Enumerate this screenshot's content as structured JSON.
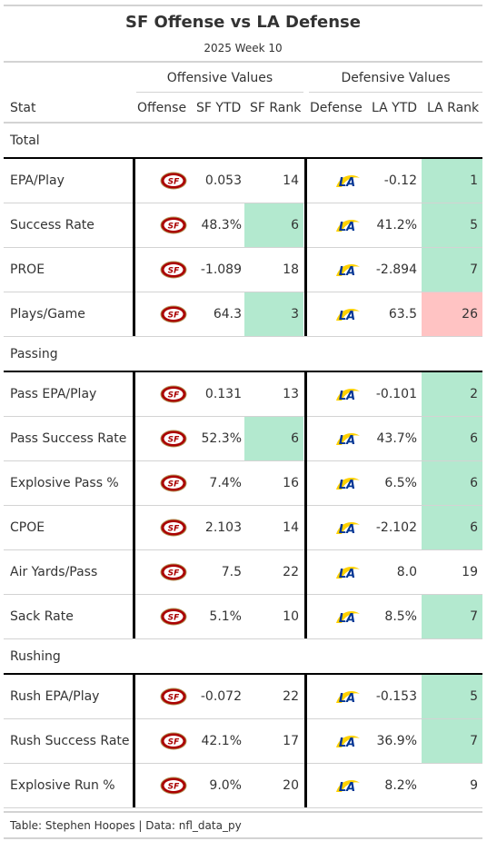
{
  "title": "SF Offense vs LA Defense",
  "subtitle": "2025 Week 10",
  "spanners": {
    "offensive": "Offensive Values",
    "defensive": "Defensive Values"
  },
  "columns": {
    "stat": "Stat",
    "offense": "Offense",
    "sf_ytd": "SF YTD",
    "sf_rank": "SF Rank",
    "defense": "Defense",
    "la_ytd": "LA YTD",
    "la_rank": "LA Rank"
  },
  "logos": {
    "offense": "49ers-logo-icon",
    "defense": "rams-logo-icon"
  },
  "colors": {
    "good": "#b3e9cf",
    "bad": "#ffc3c3",
    "niners_red": "#aa0000",
    "niners_gold": "#b3995d",
    "rams_blue": "#003594",
    "rams_gold": "#ffd100"
  },
  "groups": [
    {
      "name": "Total",
      "rows": [
        {
          "stat": "EPA/Play",
          "sf_ytd": "0.053",
          "sf_rank": "14",
          "sf_rank_highlight": "",
          "la_ytd": "-0.12",
          "la_rank": "1",
          "la_rank_highlight": "good"
        },
        {
          "stat": "Success Rate",
          "sf_ytd": "48.3%",
          "sf_rank": "6",
          "sf_rank_highlight": "good",
          "la_ytd": "41.2%",
          "la_rank": "5",
          "la_rank_highlight": "good"
        },
        {
          "stat": "PROE",
          "sf_ytd": "-1.089",
          "sf_rank": "18",
          "sf_rank_highlight": "",
          "la_ytd": "-2.894",
          "la_rank": "7",
          "la_rank_highlight": "good"
        },
        {
          "stat": "Plays/Game",
          "sf_ytd": "64.3",
          "sf_rank": "3",
          "sf_rank_highlight": "good",
          "la_ytd": "63.5",
          "la_rank": "26",
          "la_rank_highlight": "bad"
        }
      ]
    },
    {
      "name": "Passing",
      "rows": [
        {
          "stat": "Pass EPA/Play",
          "sf_ytd": "0.131",
          "sf_rank": "13",
          "sf_rank_highlight": "",
          "la_ytd": "-0.101",
          "la_rank": "2",
          "la_rank_highlight": "good"
        },
        {
          "stat": "Pass Success Rate",
          "sf_ytd": "52.3%",
          "sf_rank": "6",
          "sf_rank_highlight": "good",
          "la_ytd": "43.7%",
          "la_rank": "6",
          "la_rank_highlight": "good"
        },
        {
          "stat": "Explosive Pass %",
          "sf_ytd": "7.4%",
          "sf_rank": "16",
          "sf_rank_highlight": "",
          "la_ytd": "6.5%",
          "la_rank": "6",
          "la_rank_highlight": "good"
        },
        {
          "stat": "CPOE",
          "sf_ytd": "2.103",
          "sf_rank": "14",
          "sf_rank_highlight": "",
          "la_ytd": "-2.102",
          "la_rank": "6",
          "la_rank_highlight": "good"
        },
        {
          "stat": "Air Yards/Pass",
          "sf_ytd": "7.5",
          "sf_rank": "22",
          "sf_rank_highlight": "",
          "la_ytd": "8.0",
          "la_rank": "19",
          "la_rank_highlight": ""
        },
        {
          "stat": "Sack Rate",
          "sf_ytd": "5.1%",
          "sf_rank": "10",
          "sf_rank_highlight": "",
          "la_ytd": "8.5%",
          "la_rank": "7",
          "la_rank_highlight": "good"
        }
      ]
    },
    {
      "name": "Rushing",
      "rows": [
        {
          "stat": "Rush EPA/Play",
          "sf_ytd": "-0.072",
          "sf_rank": "22",
          "sf_rank_highlight": "",
          "la_ytd": "-0.153",
          "la_rank": "5",
          "la_rank_highlight": "good"
        },
        {
          "stat": "Rush Success Rate",
          "sf_ytd": "42.1%",
          "sf_rank": "17",
          "sf_rank_highlight": "",
          "la_ytd": "36.9%",
          "la_rank": "7",
          "la_rank_highlight": "good"
        },
        {
          "stat": "Explosive Run %",
          "sf_ytd": "9.0%",
          "sf_rank": "20",
          "sf_rank_highlight": "",
          "la_ytd": "8.2%",
          "la_rank": "9",
          "la_rank_highlight": ""
        }
      ]
    }
  ],
  "source_note": "Table: Stephen Hoopes | Data: nfl_data_py"
}
